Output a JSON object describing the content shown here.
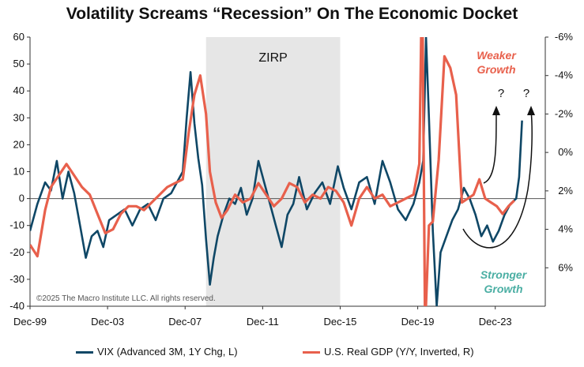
{
  "chart_data": {
    "type": "line",
    "title": "Volatility Screams “Recession” On The Economic Docket",
    "x_tick_labels": [
      "Dec-99",
      "Dec-03",
      "Dec-07",
      "Dec-11",
      "Dec-15",
      "Dec-19",
      "Dec-23"
    ],
    "x_tick_positions": [
      1999.92,
      2003.92,
      2007.92,
      2011.92,
      2015.92,
      2019.92,
      2023.92
    ],
    "xlim": [
      1999.92,
      2026.5
    ],
    "left_axis": {
      "ylim": [
        -40,
        60
      ],
      "ticks": [
        60,
        50,
        40,
        30,
        20,
        10,
        0,
        -10,
        -20,
        -30,
        -40
      ],
      "tick_labels": [
        "60",
        "50",
        "40",
        "30",
        "20",
        "10",
        "0",
        "-10",
        "-20",
        "-30",
        "-40"
      ]
    },
    "right_axis": {
      "inverted": true,
      "ylim": [
        -6,
        8
      ],
      "ticks": [
        -6,
        -4,
        -2,
        0,
        2,
        4,
        6
      ],
      "tick_labels": [
        "-6%",
        "-4%",
        "-2%",
        "0%",
        "2%",
        "4%",
        "6%"
      ]
    },
    "shaded_region": {
      "label": "ZIRP",
      "x_start": 2009.0,
      "x_end": 2015.92
    },
    "annotations": {
      "weaker_line1": "Weaker",
      "weaker_line2": "Growth",
      "stronger_line1": "Stronger",
      "stronger_line2": "Growth",
      "question1": "?",
      "question2": "?",
      "copyright": "©2025 The Macro Institute LLC. All rights reserved."
    },
    "colors": {
      "vix": "#0f4766",
      "gdp": "#e8604c",
      "zirp": "#e6e6e6",
      "weaker": "#e8604c",
      "stronger": "#4aaea3"
    },
    "legend_placement": "bottom",
    "series": [
      {
        "name": "VIX (Advanced 3M, 1Y Chg, L)",
        "axis": "left",
        "color": "#0f4766",
        "x": [
          1999.92,
          2000.3,
          2000.7,
          2001.0,
          2001.3,
          2001.6,
          2001.9,
          2002.2,
          2002.5,
          2002.8,
          2003.1,
          2003.4,
          2003.7,
          2004.0,
          2004.4,
          2004.8,
          2005.2,
          2005.6,
          2006.0,
          2006.4,
          2006.8,
          2007.2,
          2007.5,
          2007.8,
          2008.0,
          2008.2,
          2008.4,
          2008.6,
          2008.8,
          2009.0,
          2009.2,
          2009.4,
          2009.6,
          2009.9,
          2010.2,
          2010.5,
          2010.8,
          2011.1,
          2011.4,
          2011.7,
          2012.0,
          2012.3,
          2012.6,
          2012.9,
          2013.2,
          2013.5,
          2013.8,
          2014.2,
          2014.6,
          2015.0,
          2015.4,
          2015.8,
          2016.1,
          2016.5,
          2016.9,
          2017.3,
          2017.7,
          2018.1,
          2018.5,
          2018.9,
          2019.3,
          2019.7,
          2020.0,
          2020.2,
          2020.35,
          2020.5,
          2020.7,
          2020.9,
          2021.1,
          2021.4,
          2021.7,
          2022.0,
          2022.3,
          2022.6,
          2022.9,
          2023.2,
          2023.5,
          2023.8,
          2024.1,
          2024.4,
          2024.7,
          2025.0,
          2025.15,
          2025.3
        ],
        "values": [
          -12,
          -2,
          6,
          3,
          14,
          0,
          10,
          2,
          -10,
          -22,
          -14,
          -12,
          -18,
          -8,
          -6,
          -4,
          -10,
          -4,
          -2,
          -8,
          0,
          2,
          6,
          10,
          30,
          47,
          28,
          15,
          5,
          -15,
          -32,
          -22,
          -14,
          -6,
          0,
          -2,
          4,
          -6,
          0,
          14,
          6,
          -2,
          -10,
          -18,
          -6,
          -2,
          8,
          -4,
          2,
          6,
          -2,
          12,
          4,
          -4,
          6,
          8,
          -2,
          14,
          6,
          -4,
          -8,
          -2,
          6,
          14,
          60,
          30,
          -12,
          -40,
          -20,
          -14,
          -8,
          -4,
          4,
          0,
          -6,
          -14,
          -10,
          -16,
          -12,
          -6,
          -2,
          0,
          8,
          29
        ]
      },
      {
        "name": "U.S. Real GDP (Y/Y, Inverted, R)",
        "axis": "right",
        "color": "#e8604c",
        "x": [
          1999.92,
          2000.3,
          2000.7,
          2001.0,
          2001.4,
          2001.8,
          2002.2,
          2002.6,
          2003.0,
          2003.4,
          2003.8,
          2004.2,
          2004.6,
          2005.0,
          2005.4,
          2005.8,
          2006.2,
          2006.6,
          2007.0,
          2007.4,
          2007.8,
          2008.1,
          2008.4,
          2008.7,
          2009.0,
          2009.2,
          2009.5,
          2009.8,
          2010.1,
          2010.5,
          2010.9,
          2011.3,
          2011.7,
          2012.1,
          2012.5,
          2012.9,
          2013.3,
          2013.7,
          2014.1,
          2014.5,
          2014.9,
          2015.3,
          2015.7,
          2016.1,
          2016.5,
          2016.9,
          2017.3,
          2017.7,
          2018.1,
          2018.5,
          2018.9,
          2019.3,
          2019.7,
          2020.0,
          2020.15,
          2020.3,
          2020.5,
          2020.7,
          2021.0,
          2021.3,
          2021.6,
          2021.9,
          2022.2,
          2022.5,
          2022.8,
          2023.1,
          2023.4,
          2023.7,
          2024.0,
          2024.3,
          2024.6,
          2024.9
        ],
        "values": [
          4.8,
          5.4,
          3.0,
          1.8,
          1.2,
          0.6,
          1.2,
          1.8,
          2.2,
          3.2,
          4.2,
          4.0,
          3.2,
          2.8,
          2.8,
          3.0,
          2.6,
          2.2,
          1.8,
          1.6,
          1.4,
          -1.0,
          -3.0,
          -4.0,
          -2.0,
          1.0,
          2.6,
          3.4,
          3.0,
          2.2,
          2.6,
          2.4,
          1.6,
          2.2,
          2.8,
          2.4,
          1.6,
          1.8,
          2.6,
          2.2,
          2.4,
          1.8,
          2.0,
          2.6,
          3.8,
          2.4,
          1.8,
          2.4,
          2.2,
          2.8,
          2.6,
          2.4,
          2.2,
          0.6,
          -9.5,
          9.2,
          3.8,
          3.6,
          0.4,
          -5.0,
          -4.4,
          -3.0,
          2.6,
          2.4,
          2.2,
          1.4,
          2.4,
          2.6,
          2.8,
          3.2,
          2.8,
          2.5
        ]
      }
    ]
  },
  "legend": {
    "vix_label": "VIX (Advanced 3M, 1Y Chg, L)",
    "gdp_label": "U.S. Real GDP (Y/Y, Inverted, R)"
  }
}
